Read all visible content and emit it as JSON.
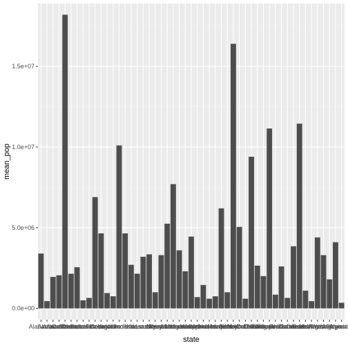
{
  "chart_data": {
    "type": "bar",
    "xlabel": "state",
    "ylabel": "mean_pop",
    "ylim": [
      -700000,
      18900000
    ],
    "grid": true,
    "yticks": [
      {
        "value": 0,
        "label": "0.0e+00"
      },
      {
        "value": 5000000,
        "label": "5.0e+06"
      },
      {
        "value": 10000000,
        "label": "1.0e+07"
      },
      {
        "value": 15000000,
        "label": "1.5e+07"
      }
    ],
    "categories": [
      "Alabama",
      "Alaska",
      "Arizona",
      "Arkansas",
      "California",
      "Colorado",
      "Connecticut",
      "Delaware",
      "District of Columbia",
      "Florida",
      "Georgia",
      "Hawaii",
      "Idaho",
      "Illinois",
      "Indiana",
      "Iowa",
      "Kansas",
      "Kentucky",
      "Louisiana",
      "Maine",
      "Maryland",
      "Massachusetts",
      "Michigan",
      "Minnesota",
      "Mississippi",
      "Missouri",
      "Montana",
      "Nebraska",
      "Nevada",
      "New Hampshire",
      "New Jersey",
      "New Mexico",
      "New York",
      "North Carolina",
      "North Dakota",
      "Ohio",
      "Oklahoma",
      "Oregon",
      "Pennsylvania",
      "Rhode Island",
      "South Carolina",
      "South Dakota",
      "Tennessee",
      "Texas",
      "Utah",
      "Vermont",
      "Virginia",
      "Washington",
      "West Virginia",
      "Wisconsin",
      "Wyoming"
    ],
    "values": [
      3400000,
      450000,
      1950000,
      2050000,
      18200000,
      2150000,
      2550000,
      500000,
      650000,
      6900000,
      4650000,
      950000,
      750000,
      10100000,
      4650000,
      2700000,
      2150000,
      3200000,
      3350000,
      1000000,
      3300000,
      5250000,
      7700000,
      3600000,
      2300000,
      4450000,
      700000,
      1450000,
      600000,
      750000,
      6200000,
      1000000,
      16400000,
      5050000,
      600000,
      9400000,
      2650000,
      2000000,
      11150000,
      850000,
      2600000,
      650000,
      3850000,
      11450000,
      1100000,
      450000,
      4400000,
      3300000,
      1800000,
      4100000,
      350000
    ],
    "colors": {
      "bar": "#4d4d4d",
      "panel": "#ebebeb",
      "grid_major": "#ffffff",
      "grid_minor": "#f2f2f2"
    }
  }
}
